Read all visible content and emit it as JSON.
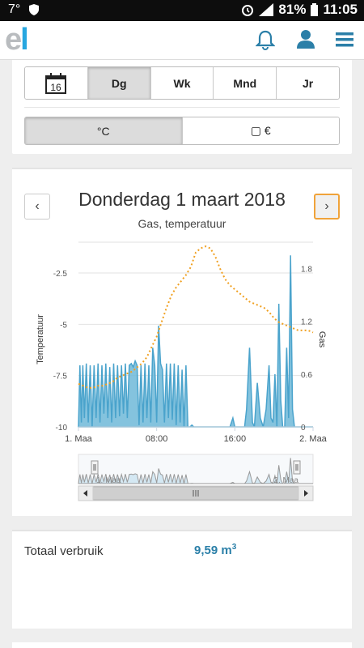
{
  "status": {
    "temp": "7°",
    "battery": "81%",
    "time": "11:05",
    "network": "LTE"
  },
  "header": {
    "logo_e": "e",
    "logo_l": "l"
  },
  "period_tabs": [
    {
      "label": "16",
      "active": false
    },
    {
      "label": "Dg",
      "active": true
    },
    {
      "label": "Wk",
      "active": false
    },
    {
      "label": "Mnd",
      "active": false
    },
    {
      "label": "Jr",
      "active": false
    }
  ],
  "unit_tabs": [
    {
      "label": "°C",
      "active": true
    },
    {
      "label": "▢ €",
      "active": false
    }
  ],
  "chart": {
    "title": "Donderdag 1 maart 2018",
    "subtitle": "Gas, temperatuur",
    "prev": "‹",
    "next": "›"
  },
  "chart_data": {
    "type": "area",
    "title": "Donderdag 1 maart 2018",
    "subtitle": "Gas, temperatuur",
    "x_ticks": [
      "1. Maa",
      "08:00",
      "16:00",
      "2. Maa"
    ],
    "y_left": {
      "label": "Temperatuur",
      "ticks": [
        -2.5,
        -5,
        -7.5,
        -10
      ],
      "range": [
        -10,
        -1
      ]
    },
    "y_right": {
      "label": "Gas",
      "ticks": [
        1.8,
        1.2,
        0.6,
        0
      ],
      "range": [
        0,
        2.1
      ]
    },
    "x_range_hours": [
      0,
      24
    ],
    "series": [
      {
        "name": "Gas",
        "axis": "right",
        "hours": [
          0,
          0.15,
          0.3,
          0.45,
          0.6,
          0.8,
          1.0,
          1.2,
          1.4,
          1.6,
          1.8,
          2.0,
          2.2,
          2.4,
          2.6,
          2.8,
          3.0,
          3.2,
          3.4,
          3.6,
          3.8,
          4.0,
          4.2,
          4.4,
          4.6,
          4.8,
          5.0,
          5.2,
          5.4,
          5.6,
          5.8,
          6.0,
          6.2,
          6.4,
          6.6,
          6.8,
          7.0,
          7.2,
          7.4,
          7.6,
          7.8,
          8.0,
          8.2,
          8.4,
          8.6,
          8.8,
          9.0,
          9.2,
          9.4,
          9.6,
          9.8,
          10.0,
          10.2,
          10.4,
          10.6,
          10.8,
          11.0,
          11.2,
          11.4,
          11.6,
          11.8,
          12.0,
          12.5,
          13.0,
          14.0,
          15.0,
          15.5,
          15.8,
          16.0,
          16.5,
          17.0,
          17.2,
          17.5,
          17.8,
          18.0,
          18.3,
          18.6,
          18.9,
          19.2,
          19.5,
          19.7,
          19.9,
          20.1,
          20.3,
          20.5,
          20.7,
          20.9,
          21.1,
          21.3,
          21.5,
          21.7,
          21.9,
          22.1,
          22.3,
          22.5,
          22.7,
          23.0,
          23.5,
          24.0
        ],
        "values": [
          0,
          0.7,
          0.05,
          0.7,
          0.1,
          0.72,
          0.05,
          0.7,
          0,
          0.7,
          0.1,
          0.72,
          0.05,
          0.7,
          0.15,
          0.72,
          0.1,
          0.68,
          0.05,
          0.72,
          0.1,
          0.7,
          0.12,
          0.7,
          0.15,
          0.72,
          0.1,
          0.7,
          0.72,
          0.68,
          0.75,
          0.7,
          0.02,
          0.7,
          0.05,
          0.72,
          0.1,
          0.7,
          0.05,
          0.9,
          0.7,
          0.05,
          1.15,
          0.72,
          0.65,
          0.05,
          0.72,
          0.1,
          0.72,
          0.08,
          0.72,
          0.02,
          0.7,
          0.05,
          0.65,
          0,
          0.7,
          0,
          0,
          0.02,
          0,
          0,
          0,
          0,
          0,
          0,
          0,
          0.1,
          0,
          0,
          0,
          0.2,
          0.9,
          0.05,
          0,
          0.5,
          0.1,
          0,
          0.2,
          0.7,
          0.1,
          0.05,
          0.6,
          0,
          1.4,
          0.3,
          0,
          0,
          0.9,
          0.1,
          1.95,
          0.2,
          0,
          0,
          0,
          0,
          0,
          0,
          0
        ]
      },
      {
        "name": "Temperatuur",
        "axis": "left",
        "hours": [
          0,
          0.5,
          1,
          1.5,
          2,
          2.5,
          3,
          3.5,
          4,
          4.5,
          5,
          5.5,
          6,
          6.5,
          7,
          7.5,
          8,
          8.5,
          9,
          9.5,
          10,
          10.5,
          11,
          11.5,
          12,
          12.5,
          13,
          13.5,
          14,
          14.5,
          15,
          15.5,
          16,
          16.5,
          17,
          17.5,
          18,
          18.5,
          19,
          19.5,
          20,
          20.5,
          21,
          21.5,
          22,
          22.5,
          23,
          23.5,
          24
        ],
        "values": [
          -7.9,
          -8.0,
          -8.1,
          -8.1,
          -8.0,
          -8.0,
          -7.9,
          -7.8,
          -7.6,
          -7.5,
          -7.4,
          -7.3,
          -7.1,
          -6.9,
          -6.6,
          -6.1,
          -5.6,
          -4.9,
          -4.2,
          -3.6,
          -3.2,
          -2.9,
          -2.6,
          -2.2,
          -1.5,
          -1.3,
          -1.2,
          -1.3,
          -1.7,
          -2.3,
          -2.8,
          -3.1,
          -3.3,
          -3.5,
          -3.7,
          -3.9,
          -4.0,
          -4.1,
          -4.2,
          -4.4,
          -4.7,
          -4.9,
          -5.0,
          -5.1,
          -5.2,
          -5.3,
          -5.3,
          -5.3,
          -5.4
        ]
      }
    ],
    "navigator": {
      "start": "1. Maa",
      "end": "2. Maa"
    }
  },
  "summary": {
    "label": "Totaal verbruik",
    "value": "9,59 m",
    "unit_sup": "3"
  }
}
